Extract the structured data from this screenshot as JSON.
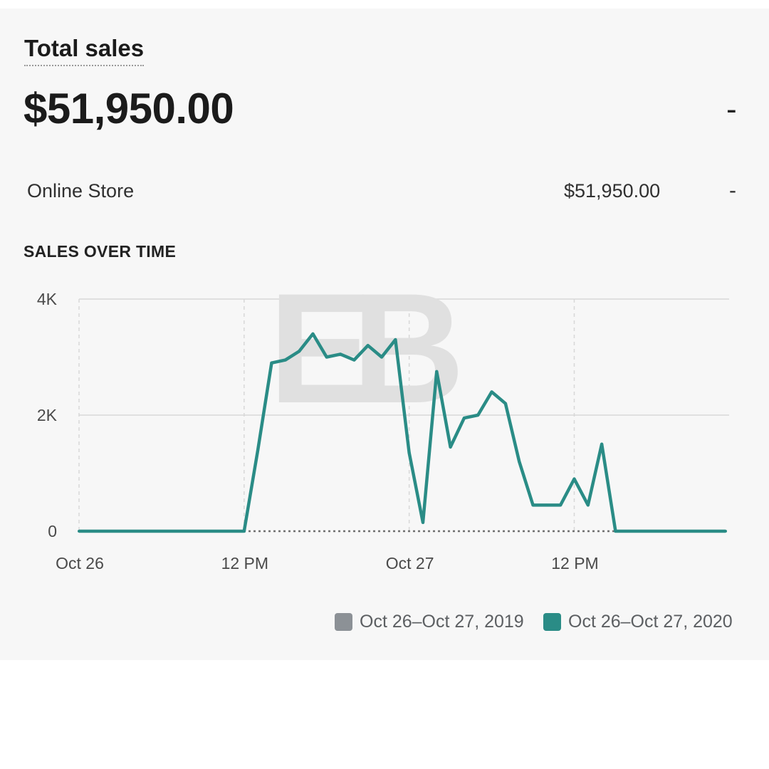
{
  "header": {
    "title": "Total sales",
    "total": "$51,950.00",
    "total_change": "-"
  },
  "breakdown": [
    {
      "label": "Online Store",
      "value": "$51,950.00",
      "change": "-"
    }
  ],
  "section_title": "SALES OVER TIME",
  "watermark": "EB",
  "colors": {
    "current": "#2a8c86",
    "previous": "#8c9196",
    "grid": "#d8d8d8"
  },
  "chart_data": {
    "type": "line",
    "x_unit": "hours since Oct 26 12 AM",
    "x": [
      0,
      1,
      2,
      3,
      4,
      5,
      6,
      7,
      8,
      9,
      10,
      11,
      12,
      13,
      14,
      15,
      16,
      17,
      18,
      19,
      20,
      21,
      22,
      23,
      24,
      25,
      26,
      27,
      28,
      29,
      30,
      31,
      32,
      33,
      34,
      35,
      36,
      37,
      38,
      39,
      40,
      41,
      42,
      43,
      44,
      45,
      46,
      47
    ],
    "xlim": [
      0,
      47
    ],
    "ylim": [
      0,
      4000
    ],
    "yticks": [
      0,
      2000,
      4000
    ],
    "ytick_labels": [
      "0",
      "2K",
      "4K"
    ],
    "xticks": [
      0,
      12,
      24,
      36
    ],
    "xtick_labels": [
      "Oct 26",
      "12 PM",
      "Oct 27",
      "12 PM"
    ],
    "grid": true,
    "legend_position": "bottom-right",
    "series": [
      {
        "name": "Oct 26–Oct 27, 2019",
        "values": [
          0,
          0,
          0,
          0,
          0,
          0,
          0,
          0,
          0,
          0,
          0,
          0,
          0,
          0,
          0,
          0,
          0,
          0,
          0,
          0,
          0,
          0,
          0,
          0,
          0,
          0,
          0,
          0,
          0,
          0,
          0,
          0,
          0,
          0,
          0,
          0,
          0,
          0,
          0,
          0,
          0,
          0,
          0,
          0,
          0,
          0,
          0,
          0
        ]
      },
      {
        "name": "Oct 26–Oct 27, 2020",
        "values": [
          0,
          0,
          0,
          0,
          0,
          0,
          0,
          0,
          0,
          0,
          0,
          0,
          0,
          1400,
          2900,
          2950,
          3100,
          3400,
          3000,
          3050,
          2950,
          3200,
          3000,
          3300,
          1350,
          150,
          2750,
          1450,
          1950,
          2000,
          2400,
          2200,
          1200,
          450,
          450,
          450,
          900,
          450,
          1500,
          0,
          0,
          0,
          0,
          0,
          0,
          0,
          0,
          0
        ]
      }
    ]
  }
}
